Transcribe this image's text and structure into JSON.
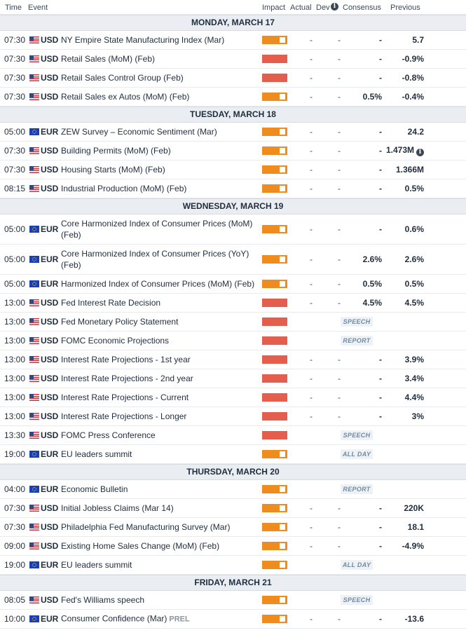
{
  "header": {
    "time": "Time",
    "event": "Event",
    "impact": "Impact",
    "actual": "Actual",
    "dev": "Dev",
    "dev_info": "i",
    "consensus": "Consensus",
    "previous": "Previous"
  },
  "days": [
    {
      "label": "MONDAY, MARCH 17",
      "events": [
        {
          "time": "07:30",
          "currency": "USD",
          "flag": "us-flag-icon",
          "name": "NY Empire State Manufacturing Index (Mar)",
          "impact": "medium",
          "actual": "-",
          "dev": "-",
          "consensus": "-",
          "previous": "5.7"
        },
        {
          "time": "07:30",
          "currency": "USD",
          "flag": "us-flag-icon",
          "name": "Retail Sales (MoM) (Feb)",
          "impact": "high",
          "actual": "-",
          "dev": "-",
          "consensus": "-",
          "previous": "-0.9%"
        },
        {
          "time": "07:30",
          "currency": "USD",
          "flag": "us-flag-icon",
          "name": "Retail Sales Control Group (Feb)",
          "impact": "high",
          "actual": "-",
          "dev": "-",
          "consensus": "-",
          "previous": "-0.8%"
        },
        {
          "time": "07:30",
          "currency": "USD",
          "flag": "us-flag-icon",
          "name": "Retail Sales ex Autos (MoM) (Feb)",
          "impact": "medium",
          "actual": "-",
          "dev": "-",
          "consensus": "0.5%",
          "previous": "-0.4%"
        }
      ]
    },
    {
      "label": "TUESDAY, MARCH 18",
      "events": [
        {
          "time": "05:00",
          "currency": "EUR",
          "flag": "eu-flag-icon",
          "name": "ZEW Survey – Economic Sentiment (Mar)",
          "impact": "medium",
          "actual": "-",
          "dev": "-",
          "consensus": "-",
          "previous": "24.2"
        },
        {
          "time": "07:30",
          "currency": "USD",
          "flag": "us-flag-icon",
          "name": "Building Permits (MoM) (Feb)",
          "impact": "medium",
          "actual": "-",
          "dev": "-",
          "consensus": "-",
          "previous": "1.473M",
          "previous_info": "i"
        },
        {
          "time": "07:30",
          "currency": "USD",
          "flag": "us-flag-icon",
          "name": "Housing Starts (MoM) (Feb)",
          "impact": "medium",
          "actual": "-",
          "dev": "-",
          "consensus": "-",
          "previous": "1.366M"
        },
        {
          "time": "08:15",
          "currency": "USD",
          "flag": "us-flag-icon",
          "name": "Industrial Production (MoM) (Feb)",
          "impact": "medium",
          "actual": "-",
          "dev": "-",
          "consensus": "-",
          "previous": "0.5%"
        }
      ]
    },
    {
      "label": "WEDNESDAY, MARCH 19",
      "events": [
        {
          "time": "05:00",
          "currency": "EUR",
          "flag": "eu-flag-icon",
          "name": "Core Harmonized Index of Consumer Prices (MoM) (Feb)",
          "impact": "medium",
          "actual": "-",
          "dev": "-",
          "consensus": "-",
          "previous": "0.6%",
          "tall": true
        },
        {
          "time": "05:00",
          "currency": "EUR",
          "flag": "eu-flag-icon",
          "name": "Core Harmonized Index of Consumer Prices (YoY) (Feb)",
          "impact": "medium",
          "actual": "-",
          "dev": "-",
          "consensus": "2.6%",
          "previous": "2.6%",
          "tall": true
        },
        {
          "time": "05:00",
          "currency": "EUR",
          "flag": "eu-flag-icon",
          "name": "Harmonized Index of Consumer Prices (MoM) (Feb)",
          "impact": "medium",
          "actual": "-",
          "dev": "-",
          "consensus": "0.5%",
          "previous": "0.5%"
        },
        {
          "time": "13:00",
          "currency": "USD",
          "flag": "us-flag-icon",
          "name": "Fed Interest Rate Decision",
          "impact": "high",
          "actual": "-",
          "dev": "-",
          "consensus": "4.5%",
          "previous": "4.5%"
        },
        {
          "time": "13:00",
          "currency": "USD",
          "flag": "us-flag-icon",
          "name": "Fed Monetary Policy Statement",
          "impact": "high",
          "tag": "SPEECH"
        },
        {
          "time": "13:00",
          "currency": "USD",
          "flag": "us-flag-icon",
          "name": "FOMC Economic Projections",
          "impact": "high",
          "tag": "REPORT"
        },
        {
          "time": "13:00",
          "currency": "USD",
          "flag": "us-flag-icon",
          "name": "Interest Rate Projections - 1st year",
          "impact": "high",
          "actual": "-",
          "dev": "-",
          "consensus": "-",
          "previous": "3.9%"
        },
        {
          "time": "13:00",
          "currency": "USD",
          "flag": "us-flag-icon",
          "name": "Interest Rate Projections - 2nd year",
          "impact": "high",
          "actual": "-",
          "dev": "-",
          "consensus": "-",
          "previous": "3.4%"
        },
        {
          "time": "13:00",
          "currency": "USD",
          "flag": "us-flag-icon",
          "name": "Interest Rate Projections - Current",
          "impact": "high",
          "actual": "-",
          "dev": "-",
          "consensus": "-",
          "previous": "4.4%"
        },
        {
          "time": "13:00",
          "currency": "USD",
          "flag": "us-flag-icon",
          "name": "Interest Rate Projections - Longer",
          "impact": "high",
          "actual": "-",
          "dev": "-",
          "consensus": "-",
          "previous": "3%"
        },
        {
          "time": "13:30",
          "currency": "USD",
          "flag": "us-flag-icon",
          "name": "FOMC Press Conference",
          "impact": "high",
          "tag": "SPEECH"
        },
        {
          "time": "19:00",
          "currency": "EUR",
          "flag": "eu-flag-icon",
          "name": "EU leaders summit",
          "impact": "medium",
          "tag": "ALL DAY"
        }
      ]
    },
    {
      "label": "THURSDAY, MARCH 20",
      "events": [
        {
          "time": "04:00",
          "currency": "EUR",
          "flag": "eu-flag-icon",
          "name": "Economic Bulletin",
          "impact": "medium",
          "tag": "REPORT"
        },
        {
          "time": "07:30",
          "currency": "USD",
          "flag": "us-flag-icon",
          "name": "Initial Jobless Claims (Mar 14)",
          "impact": "medium",
          "actual": "-",
          "dev": "-",
          "consensus": "-",
          "previous": "220K"
        },
        {
          "time": "07:30",
          "currency": "USD",
          "flag": "us-flag-icon",
          "name": "Philadelphia Fed Manufacturing Survey (Mar)",
          "impact": "medium",
          "actual": "-",
          "dev": "-",
          "consensus": "-",
          "previous": "18.1"
        },
        {
          "time": "09:00",
          "currency": "USD",
          "flag": "us-flag-icon",
          "name": "Existing Home Sales Change (MoM) (Feb)",
          "impact": "medium",
          "actual": "-",
          "dev": "-",
          "consensus": "-",
          "previous": "-4.9%"
        },
        {
          "time": "19:00",
          "currency": "EUR",
          "flag": "eu-flag-icon",
          "name": "EU leaders summit",
          "impact": "medium",
          "tag": "ALL DAY"
        }
      ]
    },
    {
      "label": "FRIDAY, MARCH 21",
      "events": [
        {
          "time": "08:05",
          "currency": "USD",
          "flag": "us-flag-icon",
          "name": "Fed's Williams speech",
          "impact": "medium",
          "tag": "SPEECH"
        },
        {
          "time": "10:00",
          "currency": "EUR",
          "flag": "eu-flag-icon",
          "name": "Consumer Confidence (Mar)",
          "prel": "PREL",
          "impact": "medium",
          "actual": "-",
          "dev": "-",
          "consensus": "-",
          "previous": "-13.6"
        }
      ]
    }
  ],
  "colors": {
    "impact_medium": "#ee8c1f",
    "impact_high": "#e45d4d",
    "day_header_bg": "#eaedf1",
    "tag_bg": "#eef1f5",
    "tag_text": "#6f8ba3"
  }
}
